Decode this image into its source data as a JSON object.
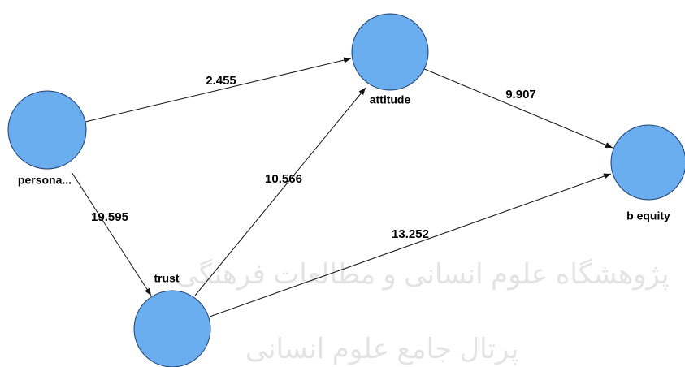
{
  "nodes": [
    {
      "label": "persona..."
    },
    {
      "label": "attitude"
    },
    {
      "label": "b equity"
    },
    {
      "label": "trust"
    }
  ],
  "edges": [
    {
      "from": "persona...",
      "to": "attitude",
      "label": "2.455"
    },
    {
      "from": "persona...",
      "to": "trust",
      "label": "19.595"
    },
    {
      "from": "trust",
      "to": "attitude",
      "label": "10.566"
    },
    {
      "from": "trust",
      "to": "b equity",
      "label": "13.252"
    },
    {
      "from": "attitude",
      "to": "b equity",
      "label": "9.907"
    }
  ],
  "watermark": {
    "line1": "پژوهشگاه علوم انسانی و مطالعات فرهنگی",
    "line2": "پرتال جامع علوم انسانی"
  }
}
